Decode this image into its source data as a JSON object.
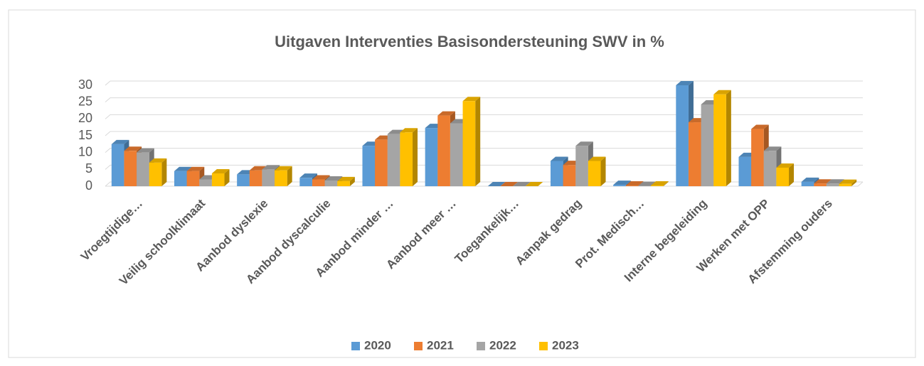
{
  "chart_data": {
    "type": "bar3d",
    "title": "Uitgaven Interventies Basisondersteuning SWV in %",
    "categories": [
      "Vroegtijdige…",
      "Veilig schoolklimaat",
      "Aanbod dyslexie",
      "Aanbod dyscalculie",
      "Aanbod minder …",
      "Aanbod meer …",
      "Toegankelijk…",
      "Aanpak gedrag",
      "Prot. Medisch…",
      "Interne begeleiding",
      "Werken met OPP",
      "Afstemming ouders"
    ],
    "series": [
      {
        "name": "2020",
        "color": "#5b9bd5",
        "values": [
          12.5,
          4.5,
          3.5,
          2.5,
          12,
          17.3,
          0,
          7.5,
          0.4,
          30,
          8.7,
          1.3
        ]
      },
      {
        "name": "2021",
        "color": "#ed7d31",
        "values": [
          10.5,
          4.5,
          4.7,
          2,
          13.8,
          21,
          0,
          6.3,
          0.2,
          19,
          17,
          0.8
        ]
      },
      {
        "name": "2022",
        "color": "#a5a5a5",
        "values": [
          10,
          2,
          5,
          1.7,
          15.5,
          18.7,
          0,
          12,
          0.1,
          24.3,
          10.5,
          0.8
        ]
      },
      {
        "name": "2023",
        "color": "#ffc000",
        "values": [
          7,
          3.8,
          4.7,
          1.5,
          16,
          25.3,
          0,
          7.5,
          0.2,
          27.3,
          5.5,
          0.7
        ]
      }
    ],
    "ylim": [
      0,
      30
    ],
    "yticks": [
      0,
      5,
      10,
      15,
      20,
      25,
      30
    ],
    "grid": true,
    "legend": "bottom"
  }
}
